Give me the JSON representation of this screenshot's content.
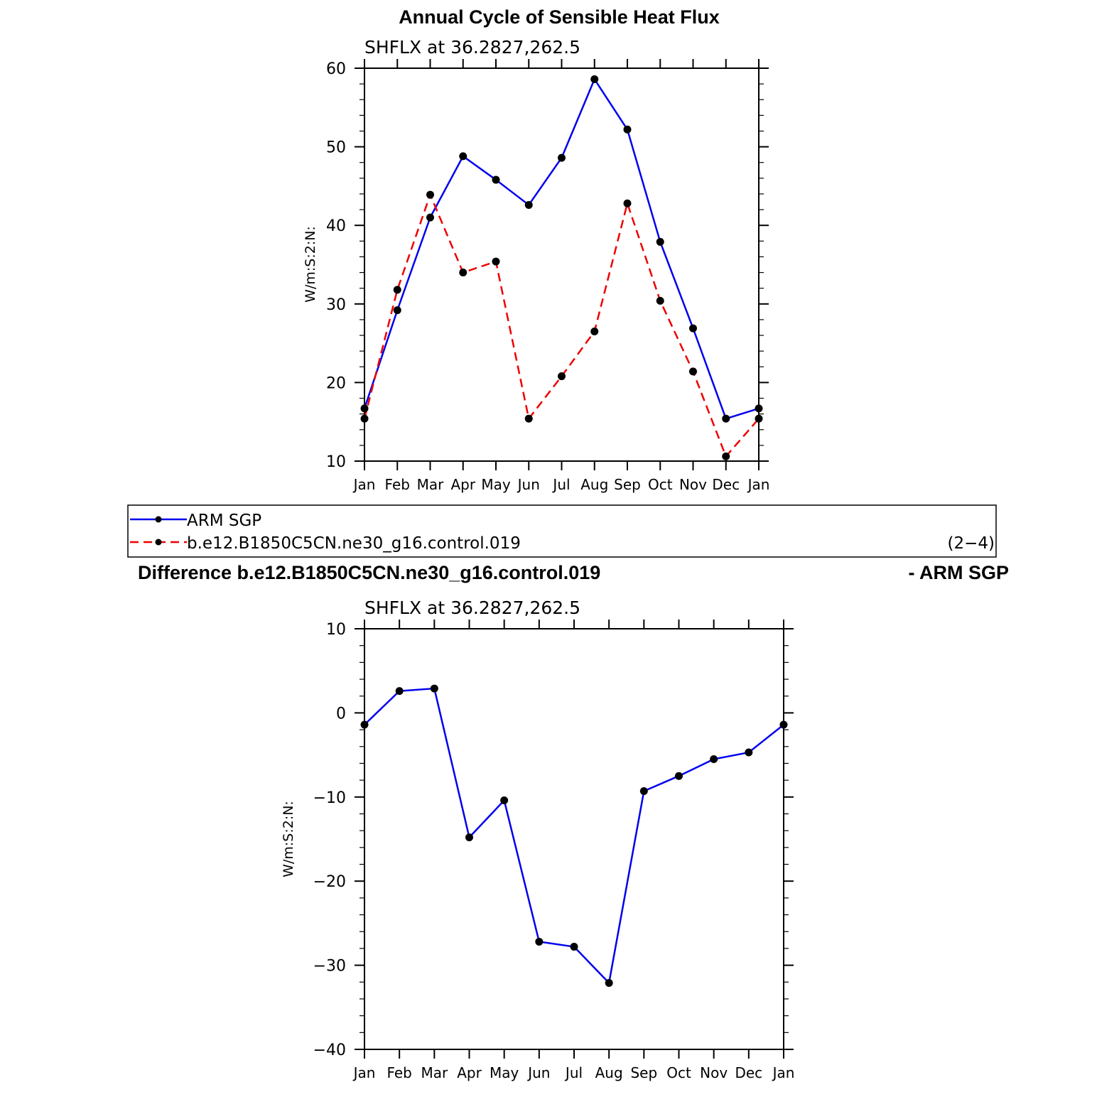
{
  "top_title": "Annual Cycle of Sensible Heat Flux",
  "diff_title_left": "Difference b.e12.B1850C5CN.ne30_g16.control.019",
  "diff_title_right": "- ARM SGP",
  "legend": {
    "items": [
      "ARM SGP",
      "b.e12.B1850C5CN.ne30_g16.control.019"
    ],
    "page_label": "(2−4)"
  },
  "colors": {
    "obs": "#0000ee",
    "model": "#ee0000",
    "marker": "#000000"
  },
  "chart_data": [
    {
      "type": "line",
      "subtitle": "SHFLX  at  36.2827,262.5",
      "ylabel": "W/m:S:2:N:",
      "categories": [
        "Jan",
        "Feb",
        "Mar",
        "Apr",
        "May",
        "Jun",
        "Jul",
        "Aug",
        "Sep",
        "Oct",
        "Nov",
        "Dec",
        "Jan"
      ],
      "ylim": [
        10,
        60
      ],
      "yticks": [
        10,
        20,
        30,
        40,
        50,
        60
      ],
      "series": [
        {
          "name": "ARM SGP",
          "color": "#0000ee",
          "dash": "solid",
          "values": [
            16.7,
            29.2,
            41.0,
            48.8,
            45.8,
            42.6,
            48.6,
            58.6,
            52.2,
            37.9,
            26.9,
            15.4,
            16.7
          ]
        },
        {
          "name": "b.e12.B1850C5CN.ne30_g16.control.019",
          "color": "#ee0000",
          "dash": "dashed",
          "values": [
            15.4,
            31.8,
            43.9,
            34.0,
            35.4,
            15.4,
            20.8,
            26.5,
            42.8,
            30.4,
            21.4,
            10.6,
            15.4
          ]
        }
      ]
    },
    {
      "type": "line",
      "subtitle": "SHFLX  at  36.2827,262.5",
      "ylabel": "W/m:S:2:N:",
      "categories": [
        "Jan",
        "Feb",
        "Mar",
        "Apr",
        "May",
        "Jun",
        "Jul",
        "Aug",
        "Sep",
        "Oct",
        "Nov",
        "Dec",
        "Jan"
      ],
      "ylim": [
        -40,
        10
      ],
      "yticks": [
        -40,
        -30,
        -20,
        -10,
        0,
        10
      ],
      "yticklabels": [
        "−40",
        "−30",
        "−20",
        "−10",
        "0",
        "10"
      ],
      "series": [
        {
          "color": "#0000ee",
          "dash": "solid",
          "values": [
            -1.4,
            2.6,
            2.9,
            -14.8,
            -10.4,
            -27.2,
            -27.8,
            -32.1,
            -9.3,
            -7.5,
            -5.5,
            -4.7,
            -1.4
          ]
        }
      ]
    }
  ]
}
